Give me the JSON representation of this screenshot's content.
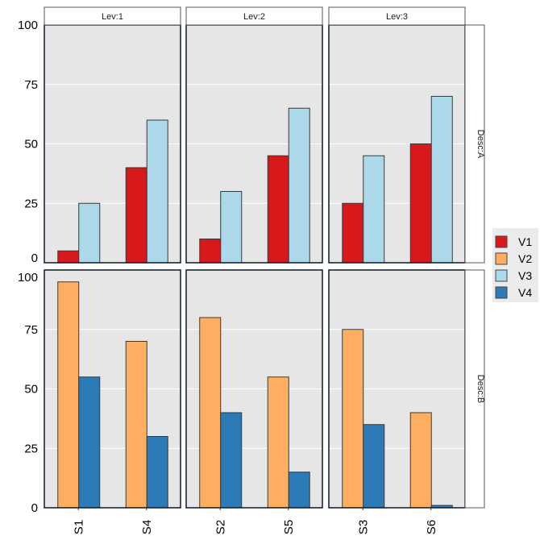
{
  "chart_data": {
    "type": "bar",
    "title": "",
    "xlabel": "",
    "ylabel": "",
    "ylim": [
      0,
      100
    ],
    "yticks": [
      0,
      25,
      50,
      75,
      100
    ],
    "grid": true,
    "legend_position": "right",
    "column_facets": [
      "Lev:1",
      "Lev:2",
      "Lev:3"
    ],
    "row_facets": [
      "Desc:A",
      "Desc:B"
    ],
    "series": [
      {
        "name": "V1",
        "color": "#d7191c"
      },
      {
        "name": "V2",
        "color": "#fdae61"
      },
      {
        "name": "V3",
        "color": "#abd9e9"
      },
      {
        "name": "V4",
        "color": "#2c7bb6"
      }
    ],
    "panels": [
      {
        "row": "Desc:A",
        "col": "Lev:1",
        "categories": [
          "S1",
          "S4"
        ],
        "bars": [
          {
            "series": "V1",
            "values": [
              5,
              40
            ]
          },
          {
            "series": "V3",
            "values": [
              25,
              60
            ]
          }
        ]
      },
      {
        "row": "Desc:A",
        "col": "Lev:2",
        "categories": [
          "S2",
          "S5"
        ],
        "bars": [
          {
            "series": "V1",
            "values": [
              10,
              45
            ]
          },
          {
            "series": "V3",
            "values": [
              30,
              65
            ]
          }
        ]
      },
      {
        "row": "Desc:A",
        "col": "Lev:3",
        "categories": [
          "S3",
          "S6"
        ],
        "bars": [
          {
            "series": "V1",
            "values": [
              25,
              50
            ]
          },
          {
            "series": "V3",
            "values": [
              45,
              70
            ]
          }
        ]
      },
      {
        "row": "Desc:B",
        "col": "Lev:1",
        "categories": [
          "S1",
          "S4"
        ],
        "bars": [
          {
            "series": "V2",
            "values": [
              95,
              70
            ]
          },
          {
            "series": "V4",
            "values": [
              55,
              30
            ]
          }
        ]
      },
      {
        "row": "Desc:B",
        "col": "Lev:2",
        "categories": [
          "S2",
          "S5"
        ],
        "bars": [
          {
            "series": "V2",
            "values": [
              80,
              55
            ]
          },
          {
            "series": "V4",
            "values": [
              40,
              15
            ]
          }
        ]
      },
      {
        "row": "Desc:B",
        "col": "Lev:3",
        "categories": [
          "S3",
          "S6"
        ],
        "bars": [
          {
            "series": "V2",
            "values": [
              75,
              40
            ]
          },
          {
            "series": "V4",
            "values": [
              35,
              1
            ]
          }
        ]
      }
    ],
    "colors": {
      "panel_background": "#e6e6e6",
      "grid": "#ffffff",
      "panel_border": "#0b1a2e",
      "bar_outline": "#3a3a3a"
    }
  }
}
